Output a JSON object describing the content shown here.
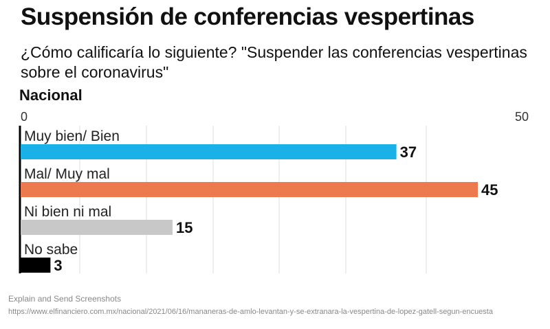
{
  "chart_data": {
    "type": "bar",
    "orientation": "horizontal",
    "title": "Suspensión de conferencias vespertinas",
    "subtitle": "¿Cómo calificaría lo siguiente?  \"Suspender las conferencias vespertinas sobre el coronavirus\"",
    "section": "Nacional",
    "categories": [
      "Muy bien/ Bien",
      "Mal/ Muy mal",
      "Ni bien ni mal",
      "No sabe"
    ],
    "values": [
      37,
      45,
      15,
      3
    ],
    "colors": [
      "#1ab0e8",
      "#ec7a4e",
      "#c8c8c8",
      "#000000"
    ],
    "xlim": [
      0,
      50
    ],
    "ticks": [
      "0",
      "50"
    ],
    "grid": true
  },
  "overlay": {
    "line1": "Explain and Send Screenshots",
    "line2": "https://www.elfinanciero.com.mx/nacional/2021/06/16/mananeras-de-amlo-levantan-y-se-extranara-la-vespertina-de-lopez-gatell-segun-encuesta"
  }
}
